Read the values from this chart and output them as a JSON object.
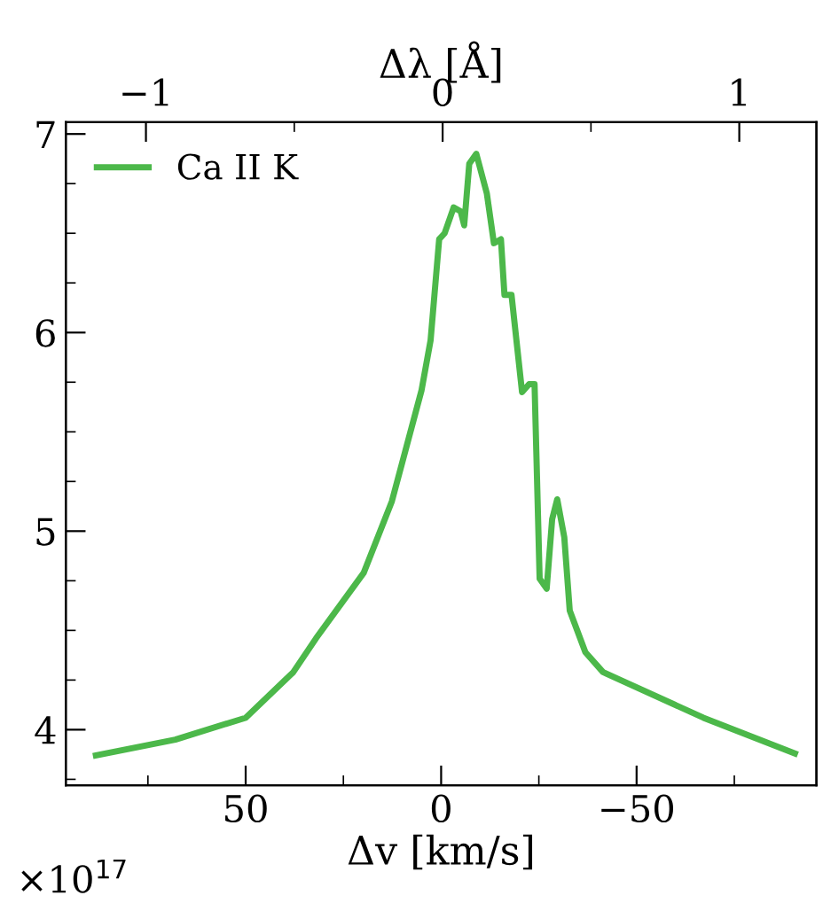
{
  "chart_data": {
    "type": "line",
    "xlabel": "Δv [km/s]",
    "x2label": "Δλ [Å]",
    "xlim": [
      96,
      -96
    ],
    "xticks": [
      50,
      0,
      {
        "value": -50,
        "label": "−50"
      }
    ],
    "x2lim": [
      -1.27,
      1.26
    ],
    "x2ticks": [
      {
        "value": -1,
        "label": "−1"
      },
      0,
      1
    ],
    "ylim": [
      3.72,
      7.06
    ],
    "yticks": [
      4,
      5,
      6,
      7
    ],
    "annotations": [
      "×10$^{17}$"
    ],
    "legend": "top left",
    "grid": false,
    "marker": "none",
    "line_style": "solid",
    "series": [
      {
        "name": "Ca II K",
        "color": "#4cb84a",
        "x": [
          88.3,
          68.0,
          50.0,
          37.8,
          32.0,
          19.8,
          12.6,
          5.0,
          2.7,
          0.5,
          -0.9,
          -3.2,
          -5.0,
          -5.9,
          -7.2,
          -9.0,
          -11.7,
          -13.5,
          -15.3,
          -16.2,
          -18.0,
          -20.7,
          -22.5,
          -23.9,
          -25.2,
          -27.0,
          -28.4,
          -29.7,
          -31.5,
          -32.9,
          -36.9,
          -41.4,
          -67.1,
          -90.5
        ],
        "values": [
          3.87,
          3.95,
          4.06,
          4.29,
          4.46,
          4.79,
          5.15,
          5.71,
          5.96,
          6.47,
          6.5,
          6.63,
          6.61,
          6.54,
          6.85,
          6.9,
          6.7,
          6.45,
          6.47,
          6.19,
          6.19,
          5.7,
          5.74,
          5.74,
          4.76,
          4.71,
          5.06,
          5.16,
          4.97,
          4.6,
          4.39,
          4.29,
          4.06,
          3.88
        ]
      }
    ]
  }
}
